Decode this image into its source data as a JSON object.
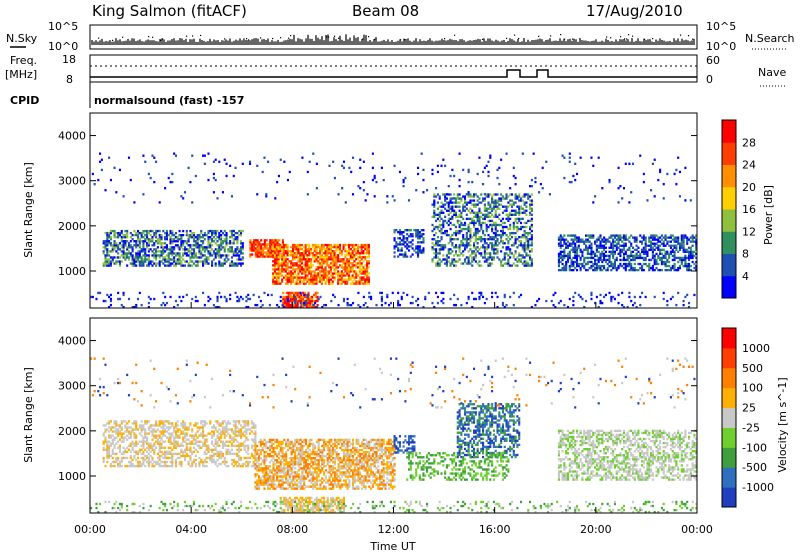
{
  "header": {
    "title": "King Salmon (fitACF)",
    "beam": "Beam 08",
    "date": "17/Aug/2010"
  },
  "meta_panels": {
    "nsky_label": "N.Sky",
    "nsearch_label": "N.Search",
    "noise_ticks_left": [
      "10^5",
      "10^0"
    ],
    "noise_ticks_right": [
      "10^5",
      "10^0"
    ],
    "freq_label": "Freq.",
    "freq_unit": "[MHz]",
    "freq_ticks": [
      "18",
      "8"
    ],
    "nave_label": "Nave",
    "nave_ticks": [
      "60",
      "0"
    ],
    "cpid_label": "CPID",
    "cpid_text": "normalsound (fast) -157"
  },
  "chart_data": [
    {
      "type": "heatmap",
      "name": "power",
      "ylabel": "Slant Range [km]",
      "yticks": [
        "1000",
        "2000",
        "3000",
        "4000"
      ],
      "ylim": [
        180,
        4500
      ],
      "xlim": [
        0,
        24
      ],
      "colorbar_label": "Power [dB]",
      "colorbar_ticks": [
        "28",
        "24",
        "20",
        "16",
        "12",
        "8",
        "4"
      ],
      "colors": [
        "#0000ff",
        "#1f4fb5",
        "#2f8f5f",
        "#8fbf3f",
        "#ffcf00",
        "#ff8f00",
        "#ff3f00",
        "#ff0000"
      ]
    },
    {
      "type": "heatmap",
      "name": "velocity",
      "ylabel": "Slant Range [km]",
      "yticks": [
        "1000",
        "2000",
        "3000",
        "4000"
      ],
      "ylim": [
        180,
        4500
      ],
      "xlim": [
        0,
        24
      ],
      "xlabel": "Time UT",
      "xticks": [
        "00:00",
        "04:00",
        "08:00",
        "12:00",
        "16:00",
        "20:00",
        "00:00"
      ],
      "colorbar_label": "Velocity [m s^-1]",
      "colorbar_ticks": [
        "1000",
        "500",
        "100",
        "25",
        "-25",
        "-100",
        "-500",
        "-1000"
      ],
      "colors": [
        "#1f3fbf",
        "#2f6fbf",
        "#3f9f3f",
        "#6fcf2f",
        "#c8c8c8",
        "#ffb000",
        "#ff7f00",
        "#ff3f00",
        "#ff0000"
      ]
    }
  ]
}
